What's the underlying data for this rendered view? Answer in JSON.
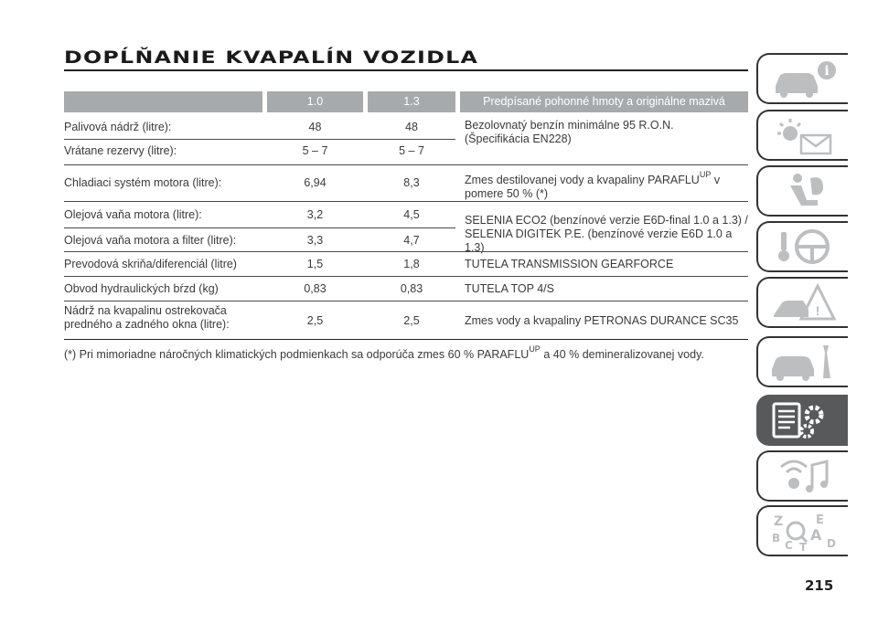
{
  "title": "DOPĹŇANIE KVAPALÍN VOZIDLA",
  "page_number": "215",
  "table": {
    "headers": [
      "",
      "1.0",
      "1.3",
      "Predpísané pohonné hmoty a originálne mazivá"
    ],
    "rows": [
      {
        "label": "Palivová nádrž (litre):",
        "v1": "48",
        "v2": "48"
      },
      {
        "label": "Vrátane rezervy (litre):",
        "v1": "5 – 7",
        "v2": "5 – 7"
      },
      {
        "label": "Chladiaci systém motora (litre):",
        "v1": "6,94",
        "v2": "8,3"
      },
      {
        "label": "Olejová vaňa motora (litre):",
        "v1": "3,2",
        "v2": "4,5"
      },
      {
        "label": "Olejová vaňa motora a filter (litre):",
        "v1": "3,3",
        "v2": "4,7"
      },
      {
        "label": "Prevodová skriňa/diferenciál (litre)",
        "v1": "1,5",
        "v2": "1,8"
      },
      {
        "label": "Obvod hydraulických bŕzd (kg)",
        "v1": "0,83",
        "v2": "0,83"
      },
      {
        "label_line1": "Nádrž na kvapalinu ostrekovača",
        "label_line2": "predného a zadného okna (litre):",
        "v1": "2,5",
        "v2": "2,5"
      }
    ],
    "specs": {
      "fuel": "Bezolovnatý benzín minimálne 95 R.O.N. (Špecifikácia EN228)",
      "coolant_a": "Zmes destilovanej vody a kvapaliny PARAFLU",
      "coolant_sup": "UP",
      "coolant_b": " v pomere 50 % (*)",
      "oil_line1": "SELENIA ECO2 (benzínové verzie E6D-final 1.0 a 1.3) /",
      "oil_line2": "SELENIA DIGITEK P.E. (benzínové verzie E6D 1.0 a 1.3)",
      "gearbox": "TUTELA TRANSMISSION GEARFORCE",
      "brakes": "TUTELA TOP 4/S",
      "washer": "Zmes vody a kvapaliny PETRONAS DURANCE SC35"
    }
  },
  "footnote": {
    "part1": "(*) Pri mimoriadne náročných klimatických podmienkach sa odporúča zmes 60 % PARAFLU",
    "sup": "UP",
    "part2": "a 40 % demineralizovanej vody."
  },
  "side_tabs": [
    {
      "icon": "car-info-icon",
      "active": false
    },
    {
      "icon": "warning-lights-icon",
      "active": false
    },
    {
      "icon": "airbag-seat-icon",
      "active": false
    },
    {
      "icon": "steering-wheel-key-icon",
      "active": false
    },
    {
      "icon": "breakdown-triangle-icon",
      "active": false
    },
    {
      "icon": "car-maintenance-icon",
      "active": false
    },
    {
      "icon": "technical-data-icon",
      "active": true
    },
    {
      "icon": "multimedia-icon",
      "active": false
    },
    {
      "icon": "alphabetical-index-icon",
      "active": false
    }
  ],
  "colors": {
    "header_bg": "#a7aaad",
    "active_tab": "#58595b",
    "icon_gray": "#bcbec0"
  }
}
